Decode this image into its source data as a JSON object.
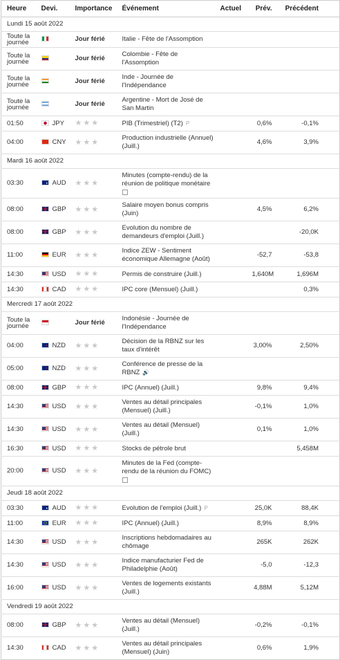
{
  "header": {
    "time": "Heure",
    "currency": "Devi.",
    "importance": "Importance",
    "event": "Événement",
    "actual": "Actuel",
    "forecast": "Prév.",
    "previous": "Précédent"
  },
  "days": [
    {
      "title": "Lundi 15 août 2022",
      "rows": [
        {
          "time": "Toute la journée",
          "importance": "Jour férié",
          "event": "Italie - Fête de l'Assomption"
        },
        {
          "time": "Toute la journée",
          "importance": "Jour férié",
          "event": "Colombie - Fête de l'Assomption"
        },
        {
          "time": "Toute la journée",
          "importance": "Jour férié",
          "event": "Inde - Journée de l'Indépendance"
        },
        {
          "time": "Toute la journée",
          "importance": "Jour férié",
          "event": "Argentine - Mort de José de San Martin"
        },
        {
          "time": "01:50",
          "currency": "JPY",
          "event": "PIB (Trimestriel) (T2)",
          "forecast": "0,6%",
          "previous": "-0,1%"
        },
        {
          "time": "04:00",
          "currency": "CNY",
          "event": "Production industrielle (Annuel) (Juill.)",
          "forecast": "4,6%",
          "previous": "3,9%"
        }
      ]
    },
    {
      "title": "Mardi 16 août 2022",
      "rows": [
        {
          "time": "03:30",
          "currency": "AUD",
          "event": "Minutes (compte-rendu) de la réunion de politique monétaire"
        },
        {
          "time": "08:00",
          "currency": "GBP",
          "event": "Salaire moyen bonus compris (Juin)",
          "forecast": "4,5%",
          "previous": "6,2%"
        },
        {
          "time": "08:00",
          "currency": "GBP",
          "event": "Evolution du nombre de demandeurs d'emploi (Juill.)",
          "previous": "-20,0K"
        },
        {
          "time": "11:00",
          "currency": "EUR",
          "event": "Indice ZEW - Sentiment économique Allemagne (Août)",
          "forecast": "-52,7",
          "previous": "-53,8"
        },
        {
          "time": "14:30",
          "currency": "USD",
          "event": "Permis de construire (Juill.)",
          "forecast": "1,640M",
          "previous": "1,696M"
        },
        {
          "time": "14:30",
          "currency": "CAD",
          "event": "IPC core (Mensuel) (Juill.)",
          "previous": "0,3%"
        }
      ]
    },
    {
      "title": "Mercredi 17 août 2022",
      "rows": [
        {
          "time": "Toute la journée",
          "importance": "Jour férié",
          "event": "Indonésie - Journée de l'Indépendance"
        },
        {
          "time": "04:00",
          "currency": "NZD",
          "event": "Décision de la RBNZ sur les taux d'intérêt",
          "forecast": "3,00%",
          "previous": "2,50%"
        },
        {
          "time": "05:00",
          "currency": "NZD",
          "event": "Conférence de presse de la RBNZ"
        },
        {
          "time": "08:00",
          "currency": "GBP",
          "event": "IPC (Annuel) (Juill.)",
          "forecast": "9,8%",
          "previous": "9,4%"
        },
        {
          "time": "14:30",
          "currency": "USD",
          "event": "Ventes au détail principales (Mensuel) (Juill.)",
          "forecast": "-0,1%",
          "previous": "1,0%"
        },
        {
          "time": "14:30",
          "currency": "USD",
          "event": "Ventes au détail (Mensuel) (Juill.)",
          "forecast": "0,1%",
          "previous": "1,0%"
        },
        {
          "time": "16:30",
          "currency": "USD",
          "event": "Stocks de pétrole brut",
          "previous": "5,458M"
        },
        {
          "time": "20:00",
          "currency": "USD",
          "event": "Minutes de la Fed (compte-rendu de la réunion du FOMC)"
        }
      ]
    },
    {
      "title": "Jeudi 18 août 2022",
      "rows": [
        {
          "time": "03:30",
          "currency": "AUD",
          "event": "Evolution de l'emploi (Juill.)",
          "forecast": "25,0K",
          "previous": "88,4K"
        },
        {
          "time": "11:00",
          "currency": "EUR",
          "event": "IPC (Annuel) (Juill.)",
          "forecast": "8,9%",
          "previous": "8,9%"
        },
        {
          "time": "14:30",
          "currency": "USD",
          "event": "Inscriptions hebdomadaires au chômage",
          "forecast": "265K",
          "previous": "262K"
        },
        {
          "time": "14:30",
          "currency": "USD",
          "event": "Indice manufacturier Fed de Philadelphie (Août)",
          "forecast": "-5,0",
          "previous": "-12,3"
        },
        {
          "time": "16:00",
          "currency": "USD",
          "event": "Ventes de logements existants (Juill.)",
          "forecast": "4,88M",
          "previous": "5,12M"
        }
      ]
    },
    {
      "title": "Vendredi 19 août 2022",
      "rows": [
        {
          "time": "08:00",
          "currency": "GBP",
          "event": "Ventes au détail (Mensuel) (Juill.)",
          "forecast": "-0,2%",
          "previous": "-0,1%"
        },
        {
          "time": "14:30",
          "currency": "CAD",
          "event": "Ventes au détail principales (Mensuel) (Juin)",
          "forecast": "0,6%",
          "previous": "1,9%"
        }
      ]
    }
  ]
}
